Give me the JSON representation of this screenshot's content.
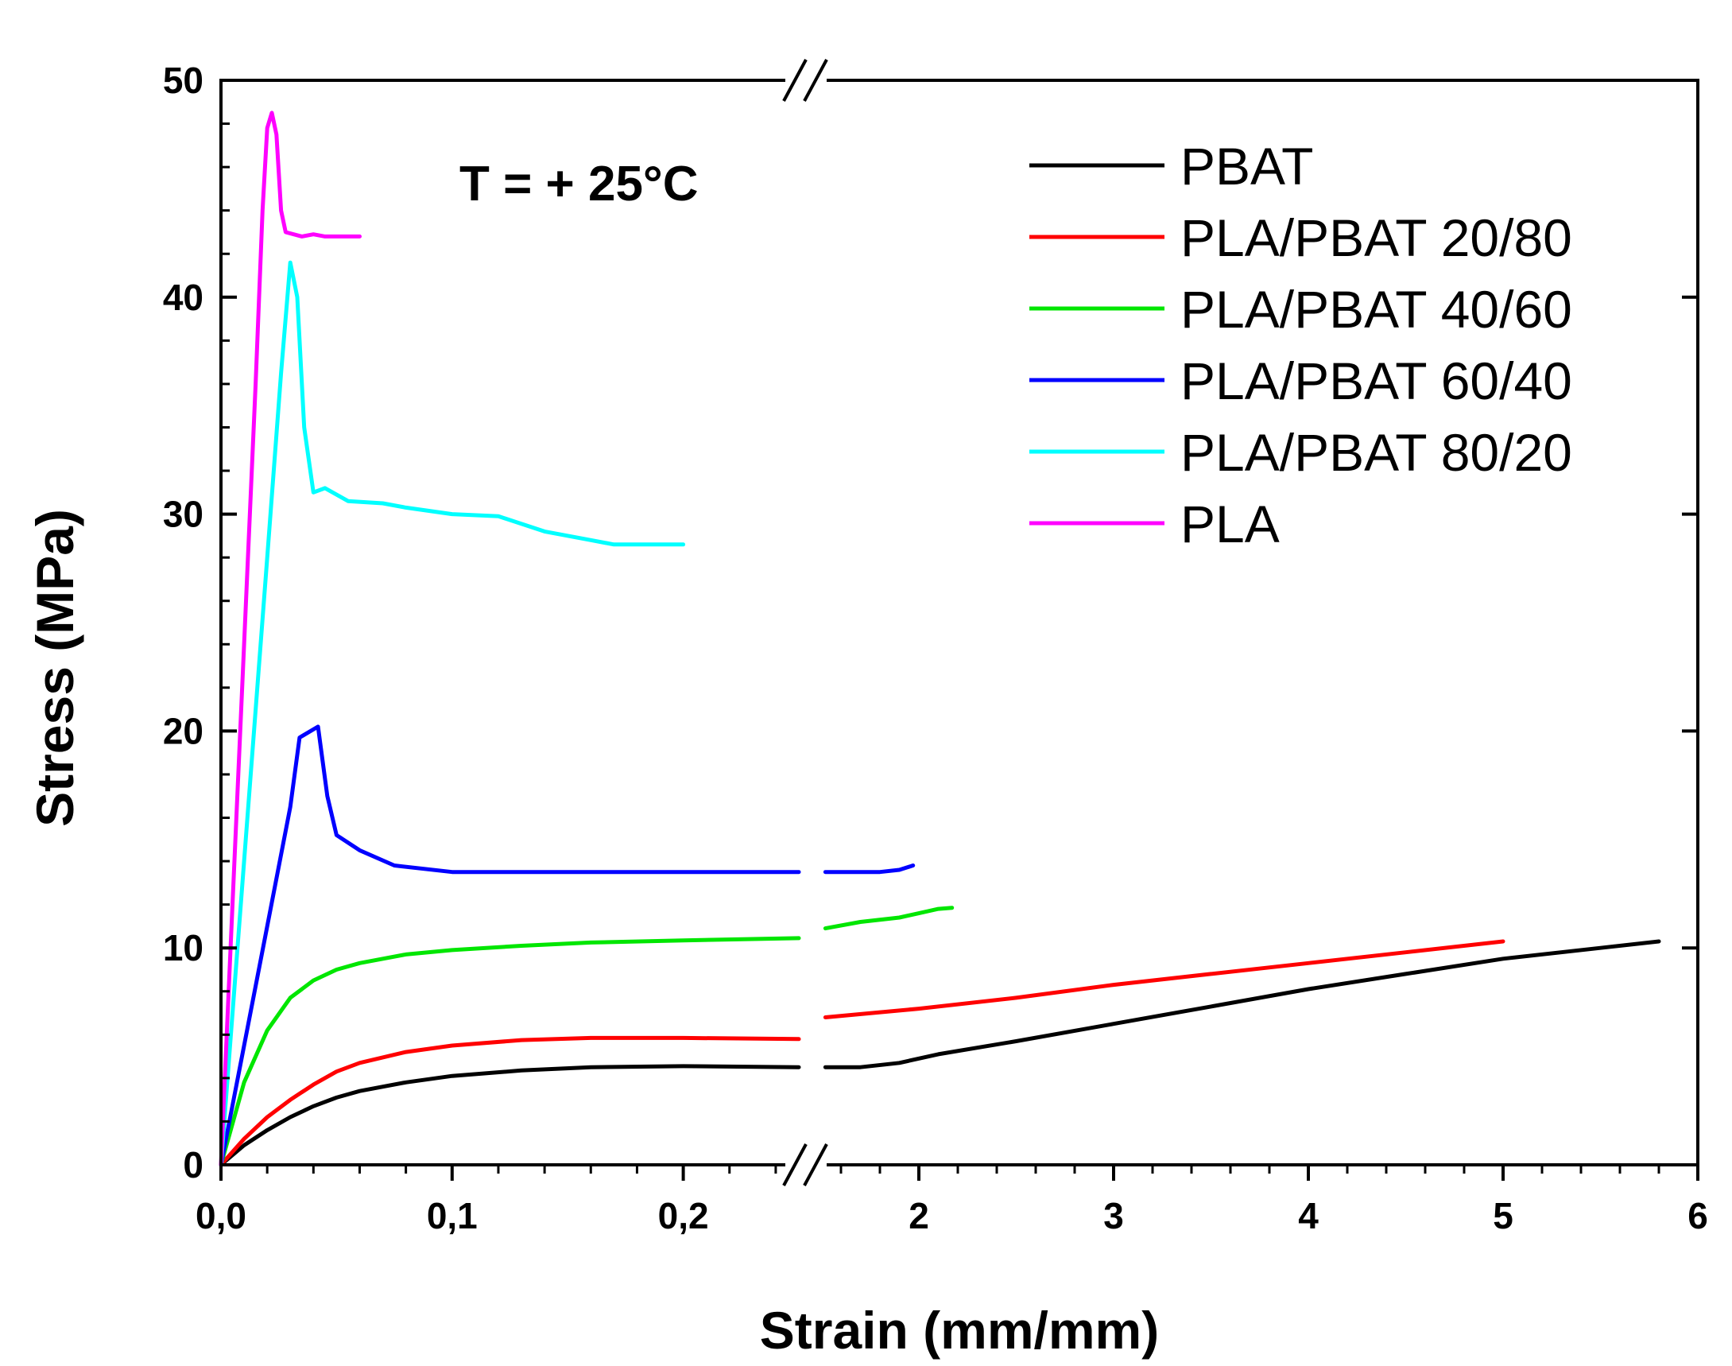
{
  "chart_data": {
    "type": "line",
    "title": "",
    "annotation": "T = + 25°C",
    "xlabel": "Strain (mm/mm)",
    "ylabel": "Stress (MPa)",
    "ylim": [
      0,
      50
    ],
    "yticks": [
      0,
      10,
      20,
      30,
      40,
      50
    ],
    "ytick_labels": [
      "0",
      "10",
      "20",
      "30",
      "40",
      "50"
    ],
    "x_axis_broken": true,
    "x_segments": [
      {
        "range": [
          0,
          0.25
        ],
        "ticks": [
          0,
          0.1,
          0.2
        ],
        "tick_labels": [
          "0,0",
          "0,1",
          "0,2"
        ]
      },
      {
        "range": [
          1.4,
          6
        ],
        "ticks": [
          2,
          3,
          4,
          5,
          6
        ],
        "tick_labels": [
          "2",
          "3",
          "4",
          "5",
          "6"
        ]
      }
    ],
    "legend_position": "top-right",
    "series": [
      {
        "name": "PBAT",
        "color": "#000000",
        "points": [
          [
            0,
            0
          ],
          [
            0.01,
            0.9
          ],
          [
            0.02,
            1.6
          ],
          [
            0.03,
            2.2
          ],
          [
            0.04,
            2.7
          ],
          [
            0.05,
            3.1
          ],
          [
            0.06,
            3.4
          ],
          [
            0.08,
            3.8
          ],
          [
            0.1,
            4.1
          ],
          [
            0.13,
            4.35
          ],
          [
            0.16,
            4.5
          ],
          [
            0.2,
            4.55
          ],
          [
            0.25,
            4.5
          ]
        ],
        "points2": [
          [
            1.52,
            4.5
          ],
          [
            1.7,
            4.5
          ],
          [
            1.9,
            4.7
          ],
          [
            2.1,
            5.1
          ],
          [
            2.5,
            5.7
          ],
          [
            3.0,
            6.5
          ],
          [
            3.5,
            7.3
          ],
          [
            4.0,
            8.1
          ],
          [
            4.5,
            8.8
          ],
          [
            5.0,
            9.5
          ],
          [
            5.5,
            10.0
          ],
          [
            5.8,
            10.3
          ]
        ]
      },
      {
        "name": "PLA/PBAT 20/80",
        "color": "#ff0000",
        "points": [
          [
            0,
            0
          ],
          [
            0.01,
            1.2
          ],
          [
            0.02,
            2.2
          ],
          [
            0.03,
            3.0
          ],
          [
            0.04,
            3.7
          ],
          [
            0.05,
            4.3
          ],
          [
            0.06,
            4.7
          ],
          [
            0.08,
            5.2
          ],
          [
            0.1,
            5.5
          ],
          [
            0.13,
            5.75
          ],
          [
            0.16,
            5.85
          ],
          [
            0.2,
            5.85
          ],
          [
            0.25,
            5.8
          ]
        ],
        "points2": [
          [
            1.52,
            6.8
          ],
          [
            2.0,
            7.2
          ],
          [
            2.5,
            7.7
          ],
          [
            3.0,
            8.3
          ],
          [
            3.5,
            8.8
          ],
          [
            4.0,
            9.3
          ],
          [
            4.5,
            9.8
          ],
          [
            5.0,
            10.3
          ]
        ]
      },
      {
        "name": "PLA/PBAT 40/60",
        "color": "#00e600",
        "points": [
          [
            0,
            0
          ],
          [
            0.01,
            3.8
          ],
          [
            0.02,
            6.2
          ],
          [
            0.03,
            7.7
          ],
          [
            0.04,
            8.5
          ],
          [
            0.05,
            9.0
          ],
          [
            0.06,
            9.3
          ],
          [
            0.08,
            9.7
          ],
          [
            0.1,
            9.9
          ],
          [
            0.13,
            10.1
          ],
          [
            0.16,
            10.25
          ],
          [
            0.2,
            10.35
          ],
          [
            0.25,
            10.45
          ]
        ],
        "points2": [
          [
            1.52,
            10.9
          ],
          [
            1.7,
            11.2
          ],
          [
            1.9,
            11.4
          ],
          [
            2.0,
            11.6
          ],
          [
            2.1,
            11.8
          ],
          [
            2.17,
            11.85
          ]
        ]
      },
      {
        "name": "PLA/PBAT 60/40",
        "color": "#0000ff",
        "points": [
          [
            0,
            0
          ],
          [
            0.01,
            5.5
          ],
          [
            0.02,
            11.0
          ],
          [
            0.03,
            16.5
          ],
          [
            0.034,
            19.7
          ],
          [
            0.042,
            20.2
          ],
          [
            0.046,
            17.0
          ],
          [
            0.05,
            15.2
          ],
          [
            0.06,
            14.5
          ],
          [
            0.075,
            13.8
          ],
          [
            0.1,
            13.5
          ],
          [
            0.15,
            13.5
          ],
          [
            0.2,
            13.5
          ],
          [
            0.25,
            13.5
          ]
        ],
        "points2": [
          [
            1.52,
            13.5
          ],
          [
            1.8,
            13.5
          ],
          [
            1.9,
            13.6
          ],
          [
            1.97,
            13.8
          ]
        ]
      },
      {
        "name": "PLA/PBAT 80/20",
        "color": "#00ffff",
        "points": [
          [
            0,
            0
          ],
          [
            0.01,
            14.0
          ],
          [
            0.02,
            28.0
          ],
          [
            0.026,
            36.5
          ],
          [
            0.03,
            41.6
          ],
          [
            0.033,
            40.0
          ],
          [
            0.036,
            34.0
          ],
          [
            0.04,
            31.0
          ],
          [
            0.045,
            31.2
          ],
          [
            0.055,
            30.6
          ],
          [
            0.07,
            30.5
          ],
          [
            0.08,
            30.3
          ],
          [
            0.1,
            30.0
          ],
          [
            0.12,
            29.9
          ],
          [
            0.14,
            29.2
          ],
          [
            0.16,
            28.8
          ],
          [
            0.17,
            28.6
          ],
          [
            0.2,
            28.6
          ]
        ],
        "points2": []
      },
      {
        "name": "PLA",
        "color": "#ff00ff",
        "points": [
          [
            0,
            0
          ],
          [
            0.005,
            12.0
          ],
          [
            0.01,
            24.0
          ],
          [
            0.015,
            36.0
          ],
          [
            0.018,
            44.0
          ],
          [
            0.02,
            47.8
          ],
          [
            0.022,
            48.5
          ],
          [
            0.024,
            47.5
          ],
          [
            0.026,
            44.0
          ],
          [
            0.028,
            43.0
          ],
          [
            0.035,
            42.8
          ],
          [
            0.04,
            42.9
          ],
          [
            0.045,
            42.8
          ],
          [
            0.06,
            42.8
          ]
        ],
        "points2": []
      }
    ]
  }
}
